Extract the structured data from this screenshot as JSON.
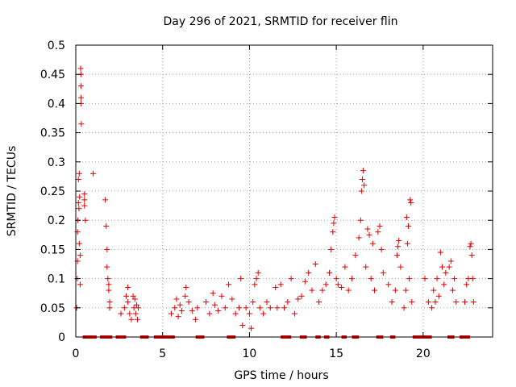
{
  "chart_data": {
    "type": "scatter",
    "title": "Day 296 of 2021, SRMTID for receiver flin",
    "xlabel": "GPS time / hours",
    "ylabel": "SRMTID / TECUs",
    "xlim": [
      0,
      24
    ],
    "ylim": [
      0,
      0.5
    ],
    "x_ticks": [
      0,
      5,
      10,
      15,
      20
    ],
    "x_tick_labels": [
      "0",
      "5",
      "10",
      "15",
      "20"
    ],
    "y_ticks": [
      0,
      0.05,
      0.1,
      0.15,
      0.2,
      0.25,
      0.3,
      0.35,
      0.4,
      0.45,
      0.5
    ],
    "y_tick_labels": [
      "0",
      "0.05",
      "0.1",
      "0.15",
      "0.2",
      "0.25",
      "0.3",
      "0.35",
      "0.4",
      "0.45",
      "0.5"
    ],
    "grid": true,
    "marker": "+",
    "color": "#e00000",
    "series": [
      {
        "name": "SRMTID",
        "points": [
          [
            0.05,
            0.05
          ],
          [
            0.08,
            0.1
          ],
          [
            0.1,
            0.13
          ],
          [
            0.1,
            0.18
          ],
          [
            0.12,
            0.2
          ],
          [
            0.15,
            0.23
          ],
          [
            0.15,
            0.27
          ],
          [
            0.18,
            0.22
          ],
          [
            0.2,
            0.28
          ],
          [
            0.2,
            0.16
          ],
          [
            0.22,
            0.24
          ],
          [
            0.25,
            0.14
          ],
          [
            0.25,
            0.09
          ],
          [
            0.28,
            0.46
          ],
          [
            0.3,
            0.45
          ],
          [
            0.3,
            0.43
          ],
          [
            0.3,
            0.41
          ],
          [
            0.3,
            0.4
          ],
          [
            0.32,
            0.365
          ],
          [
            0.5,
            0.245
          ],
          [
            0.5,
            0.235
          ],
          [
            0.5,
            0.225
          ],
          [
            0.55,
            0.2
          ],
          [
            1.0,
            0.28
          ],
          [
            1.7,
            0.235
          ],
          [
            1.75,
            0.19
          ],
          [
            1.8,
            0.15
          ],
          [
            1.8,
            0.12
          ],
          [
            1.85,
            0.1
          ],
          [
            1.9,
            0.09
          ],
          [
            1.9,
            0.08
          ],
          [
            1.95,
            0.06
          ],
          [
            1.95,
            0.05
          ],
          [
            2.6,
            0.04
          ],
          [
            2.8,
            0.05
          ],
          [
            2.9,
            0.07
          ],
          [
            3.0,
            0.085
          ],
          [
            3.0,
            0.06
          ],
          [
            3.1,
            0.04
          ],
          [
            3.2,
            0.03
          ],
          [
            3.3,
            0.07
          ],
          [
            3.35,
            0.05
          ],
          [
            3.4,
            0.065
          ],
          [
            3.45,
            0.04
          ],
          [
            3.5,
            0.055
          ],
          [
            3.55,
            0.03
          ],
          [
            3.6,
            0.05
          ],
          [
            5.5,
            0.04
          ],
          [
            5.7,
            0.05
          ],
          [
            5.8,
            0.065
          ],
          [
            5.9,
            0.035
          ],
          [
            6.0,
            0.055
          ],
          [
            6.1,
            0.045
          ],
          [
            6.3,
            0.07
          ],
          [
            6.35,
            0.085
          ],
          [
            6.5,
            0.06
          ],
          [
            6.7,
            0.045
          ],
          [
            6.9,
            0.03
          ],
          [
            7.0,
            0.05
          ],
          [
            7.5,
            0.06
          ],
          [
            7.7,
            0.04
          ],
          [
            7.9,
            0.075
          ],
          [
            8.0,
            0.055
          ],
          [
            8.2,
            0.045
          ],
          [
            8.4,
            0.07
          ],
          [
            8.6,
            0.05
          ],
          [
            8.8,
            0.09
          ],
          [
            9.0,
            0.065
          ],
          [
            9.2,
            0.04
          ],
          [
            9.4,
            0.05
          ],
          [
            9.5,
            0.1
          ],
          [
            9.6,
            0.02
          ],
          [
            9.8,
            0.05
          ],
          [
            10.0,
            0.04
          ],
          [
            10.1,
            0.015
          ],
          [
            10.2,
            0.06
          ],
          [
            10.3,
            0.09
          ],
          [
            10.4,
            0.1
          ],
          [
            10.5,
            0.11
          ],
          [
            10.6,
            0.05
          ],
          [
            10.8,
            0.04
          ],
          [
            11.0,
            0.06
          ],
          [
            11.2,
            0.05
          ],
          [
            11.5,
            0.085
          ],
          [
            11.6,
            0.05
          ],
          [
            11.8,
            0.09
          ],
          [
            12.0,
            0.05
          ],
          [
            12.2,
            0.06
          ],
          [
            12.4,
            0.1
          ],
          [
            12.6,
            0.04
          ],
          [
            12.8,
            0.065
          ],
          [
            13.0,
            0.07
          ],
          [
            13.2,
            0.095
          ],
          [
            13.4,
            0.11
          ],
          [
            13.6,
            0.08
          ],
          [
            13.8,
            0.125
          ],
          [
            14.0,
            0.06
          ],
          [
            14.2,
            0.08
          ],
          [
            14.4,
            0.09
          ],
          [
            14.6,
            0.11
          ],
          [
            14.7,
            0.15
          ],
          [
            14.8,
            0.18
          ],
          [
            14.85,
            0.195
          ],
          [
            14.9,
            0.205
          ],
          [
            15.0,
            0.1
          ],
          [
            15.1,
            0.09
          ],
          [
            15.3,
            0.085
          ],
          [
            15.5,
            0.12
          ],
          [
            15.7,
            0.08
          ],
          [
            15.9,
            0.1
          ],
          [
            16.1,
            0.14
          ],
          [
            16.3,
            0.17
          ],
          [
            16.4,
            0.2
          ],
          [
            16.45,
            0.25
          ],
          [
            16.5,
            0.27
          ],
          [
            16.55,
            0.285
          ],
          [
            16.6,
            0.26
          ],
          [
            16.7,
            0.12
          ],
          [
            16.8,
            0.185
          ],
          [
            16.9,
            0.175
          ],
          [
            17.0,
            0.1
          ],
          [
            17.1,
            0.16
          ],
          [
            17.2,
            0.08
          ],
          [
            17.4,
            0.18
          ],
          [
            17.5,
            0.19
          ],
          [
            17.6,
            0.15
          ],
          [
            17.7,
            0.11
          ],
          [
            18.0,
            0.09
          ],
          [
            18.2,
            0.06
          ],
          [
            18.4,
            0.08
          ],
          [
            18.5,
            0.14
          ],
          [
            18.55,
            0.155
          ],
          [
            18.6,
            0.165
          ],
          [
            18.7,
            0.12
          ],
          [
            18.9,
            0.05
          ],
          [
            19.0,
            0.08
          ],
          [
            19.05,
            0.205
          ],
          [
            19.1,
            0.16
          ],
          [
            19.15,
            0.19
          ],
          [
            19.2,
            0.1
          ],
          [
            19.25,
            0.235
          ],
          [
            19.3,
            0.23
          ],
          [
            19.35,
            0.06
          ],
          [
            20.1,
            0.1
          ],
          [
            20.3,
            0.06
          ],
          [
            20.5,
            0.05
          ],
          [
            20.6,
            0.08
          ],
          [
            20.7,
            0.06
          ],
          [
            20.8,
            0.1
          ],
          [
            20.9,
            0.07
          ],
          [
            21.0,
            0.145
          ],
          [
            21.1,
            0.12
          ],
          [
            21.2,
            0.09
          ],
          [
            21.3,
            0.11
          ],
          [
            21.5,
            0.12
          ],
          [
            21.6,
            0.13
          ],
          [
            21.7,
            0.08
          ],
          [
            21.8,
            0.1
          ],
          [
            21.9,
            0.06
          ],
          [
            22.4,
            0.06
          ],
          [
            22.5,
            0.09
          ],
          [
            22.6,
            0.1
          ],
          [
            22.7,
            0.155
          ],
          [
            22.75,
            0.16
          ],
          [
            22.8,
            0.14
          ],
          [
            22.85,
            0.1
          ],
          [
            22.9,
            0.06
          ]
        ]
      },
      {
        "name": "zero-level",
        "y": 0,
        "x_ranges": [
          [
            0.4,
            1.2
          ],
          [
            1.4,
            2.1
          ],
          [
            2.3,
            2.9
          ],
          [
            3.7,
            4.2
          ],
          [
            4.5,
            5.7
          ],
          [
            6.9,
            7.4
          ],
          [
            8.7,
            9.2
          ],
          [
            11.8,
            12.4
          ],
          [
            12.9,
            13.3
          ],
          [
            13.8,
            14.1
          ],
          [
            14.3,
            14.6
          ],
          [
            15.3,
            15.6
          ],
          [
            15.9,
            16.3
          ],
          [
            17.3,
            17.7
          ],
          [
            18.1,
            18.4
          ],
          [
            19.4,
            20.5
          ],
          [
            21.4,
            21.8
          ],
          [
            22.1,
            22.7
          ]
        ]
      }
    ]
  }
}
